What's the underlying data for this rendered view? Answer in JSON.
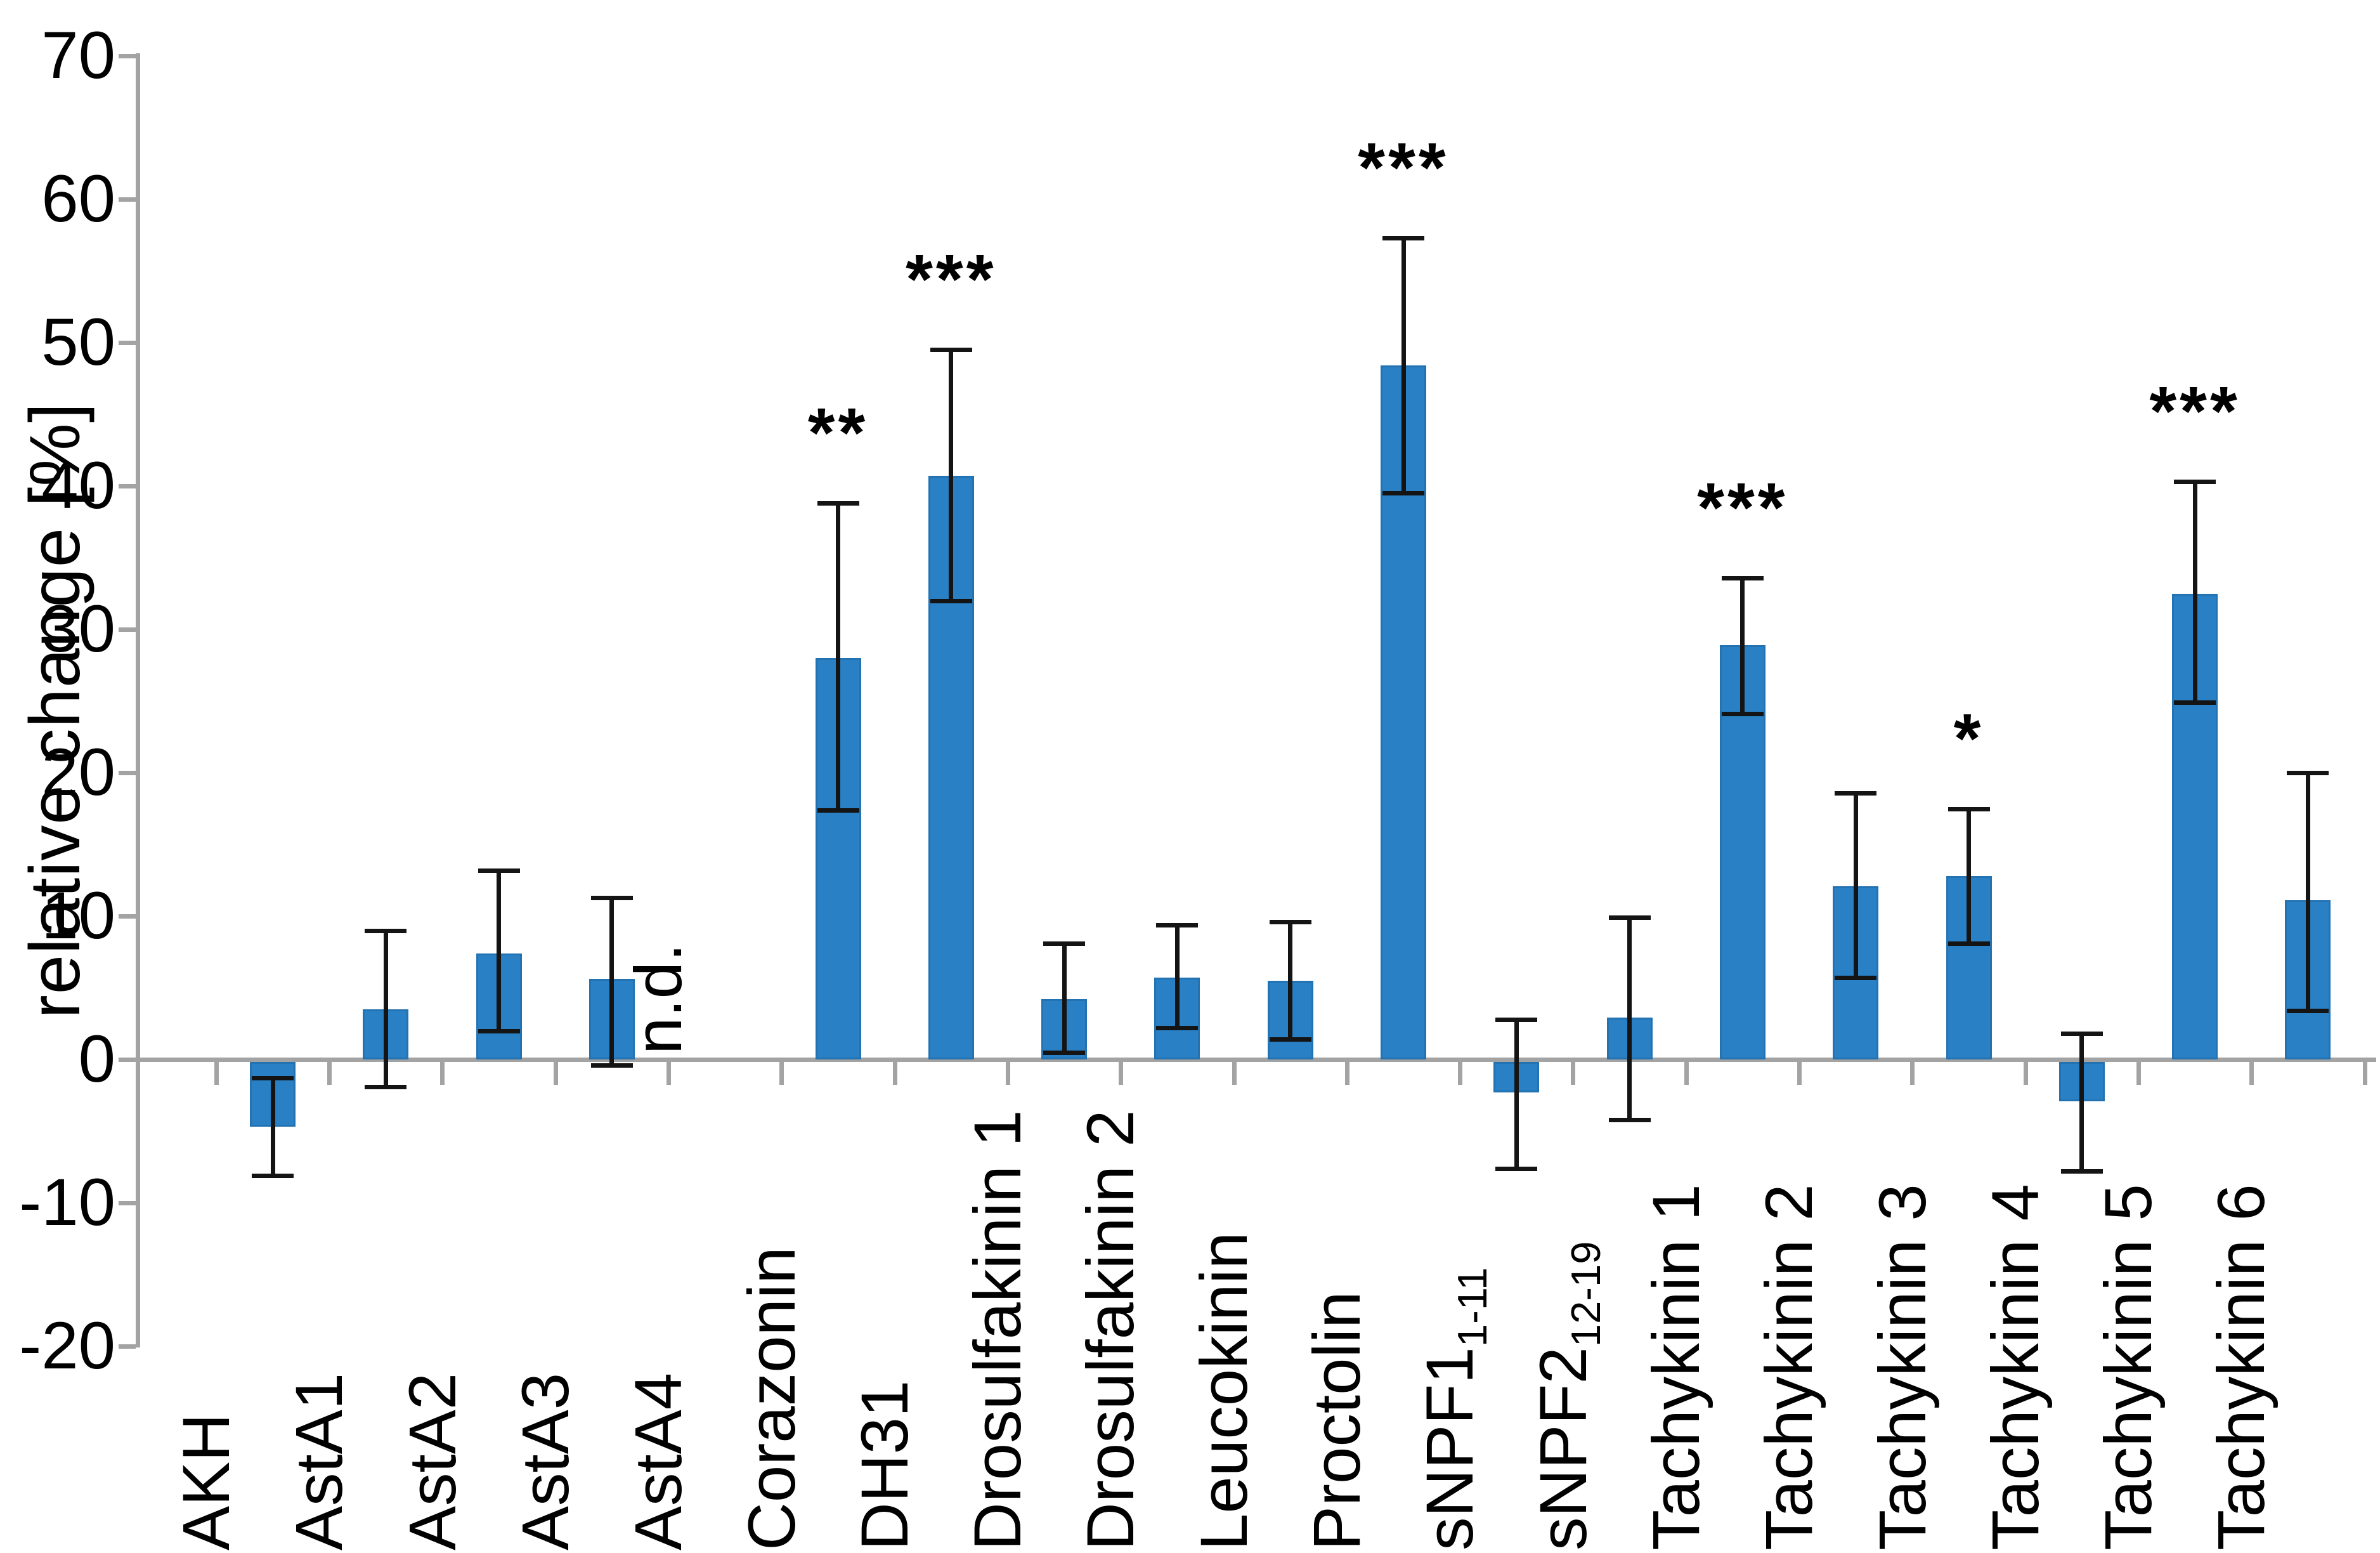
{
  "colors": {
    "bar_fill": "#2980c4",
    "bar_edge": "#2372b2",
    "axis_gray": "#a3a3a3",
    "error_black": "#141414",
    "text": "#000000",
    "background": "#ffffff"
  },
  "chart_data": {
    "type": "bar",
    "title": "",
    "xlabel": "",
    "ylabel": "relative change [%]",
    "ylim": [
      -20,
      70
    ],
    "y_ticks": [
      70,
      60,
      50,
      40,
      30,
      20,
      10,
      0,
      -10,
      -20
    ],
    "grid": false,
    "legend": false,
    "not_detected": "n.d.",
    "categories": [
      "AKH",
      "AstA1",
      "AstA2",
      "AstA3",
      "AstA4",
      "Corazonin",
      "DH31",
      "Drosulfakinin 1",
      "Drosulfakinin 2",
      "Leucokinin",
      "Proctolin",
      "sNPF1",
      "sNPF2",
      "Tachykinin 1",
      "Tachykinin 2",
      "Tachykinin 3",
      "Tachykinin 4",
      "Tachykinin 5",
      "Tachykinin 6"
    ],
    "category_subscripts": [
      "",
      "",
      "",
      "",
      "",
      "",
      "",
      "",
      "",
      "",
      "",
      "1-11",
      "12-19",
      "",
      "",
      "",
      "",
      "",
      ""
    ],
    "values": [
      -4.7,
      3.5,
      7.4,
      5.6,
      null,
      28.0,
      40.7,
      4.2,
      5.7,
      5.5,
      48.4,
      -2.3,
      2.9,
      28.9,
      12.1,
      12.8,
      -2.9,
      32.5,
      11.1
    ],
    "error_low": [
      -8.1,
      -1.9,
      2.0,
      -0.4,
      null,
      17.4,
      32.0,
      0.5,
      2.2,
      1.4,
      39.5,
      -7.6,
      -4.2,
      24.1,
      5.7,
      8.1,
      -7.8,
      24.9,
      3.4
    ],
    "error_high": [
      -1.3,
      9.0,
      13.2,
      11.3,
      null,
      38.8,
      49.5,
      8.1,
      9.4,
      9.6,
      57.3,
      2.8,
      9.9,
      33.6,
      18.6,
      17.5,
      1.8,
      40.3,
      20.0
    ],
    "significance": [
      "",
      "",
      "",
      "",
      "",
      "**",
      "***",
      "",
      "",
      "",
      "***",
      "",
      "",
      "***",
      "",
      "*",
      "",
      "***",
      ""
    ]
  }
}
